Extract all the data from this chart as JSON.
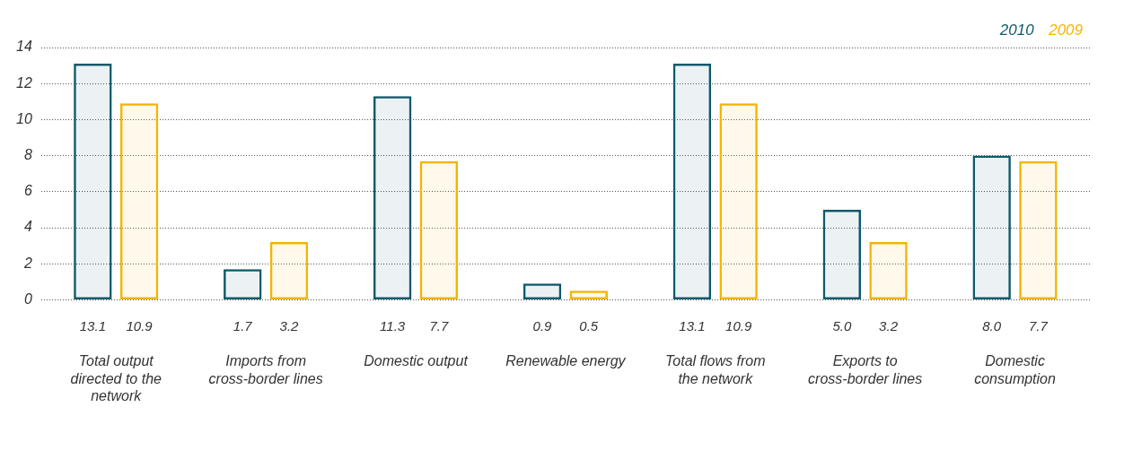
{
  "chart_data": {
    "type": "bar",
    "categories": [
      "Total output directed to the network",
      "Imports from cross-border lines",
      "Domestic output",
      "Renewable energy",
      "Total flows from the network",
      "Exports to cross-border lines",
      "Domestic consumption"
    ],
    "series": [
      {
        "name": "2010",
        "color": "#0e5a6b",
        "values": [
          13.1,
          1.7,
          11.3,
          0.9,
          13.1,
          5.0,
          8.0
        ],
        "value_labels": [
          "13.1",
          "1.7",
          "11.3",
          "0.9",
          "13.1",
          "5.0",
          "8.0"
        ]
      },
      {
        "name": "2009",
        "color": "#f5b400",
        "values": [
          10.9,
          3.2,
          7.7,
          0.5,
          10.9,
          3.2,
          7.7
        ],
        "value_labels": [
          "10.9",
          "3.2",
          "7.7",
          "0.5",
          "10.9",
          "3.2",
          "7.7"
        ]
      }
    ],
    "ylim": [
      0,
      14
    ],
    "yticks": [
      0,
      2,
      4,
      6,
      8,
      10,
      12,
      14
    ],
    "grid": "y",
    "legend": "top right"
  }
}
